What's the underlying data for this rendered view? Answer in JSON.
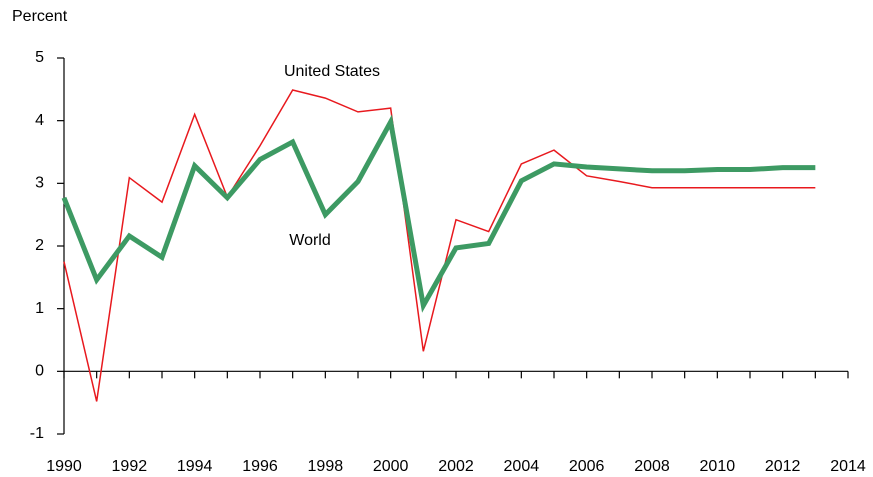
{
  "chart_data": {
    "type": "line",
    "y_label": "Percent",
    "annotations": [
      "United States",
      "World"
    ],
    "x": [
      1990,
      1991,
      1992,
      1993,
      1994,
      1995,
      1996,
      1997,
      1998,
      1999,
      2000,
      2001,
      2002,
      2003,
      2004,
      2005,
      2006,
      2007,
      2008,
      2009,
      2010,
      2011,
      2012,
      2013
    ],
    "series": [
      {
        "name": "United States",
        "color": "#e8191e",
        "width": 1.5,
        "values": [
          1.75,
          -0.48,
          3.09,
          2.7,
          4.1,
          2.78,
          3.6,
          4.49,
          4.36,
          4.14,
          4.2,
          0.32,
          2.42,
          2.23,
          3.31,
          3.53,
          3.12,
          3.03,
          2.93,
          2.93,
          2.93,
          2.93,
          2.93,
          2.93
        ]
      },
      {
        "name": "World",
        "color": "#3d9a63",
        "width": 5,
        "values": [
          2.77,
          1.46,
          2.16,
          1.82,
          3.28,
          2.77,
          3.38,
          3.66,
          2.5,
          3.03,
          3.98,
          1.05,
          1.97,
          2.04,
          3.04,
          3.31,
          3.26,
          3.23,
          3.2,
          3.2,
          3.22,
          3.22,
          3.25,
          3.25
        ]
      }
    ],
    "xlim": [
      1990,
      2014
    ],
    "xticks": [
      1990,
      1992,
      1994,
      1996,
      1998,
      2000,
      2002,
      2004,
      2006,
      2008,
      2010,
      2012,
      2014
    ],
    "xminorticks": [
      1991,
      1993,
      1995,
      1997,
      1999,
      2001,
      2003,
      2005,
      2007,
      2009,
      2011,
      2013
    ],
    "ylim": [
      -1,
      5
    ],
    "yticks": [
      -1,
      0,
      1,
      2,
      3,
      4,
      5
    ],
    "grid": false
  }
}
